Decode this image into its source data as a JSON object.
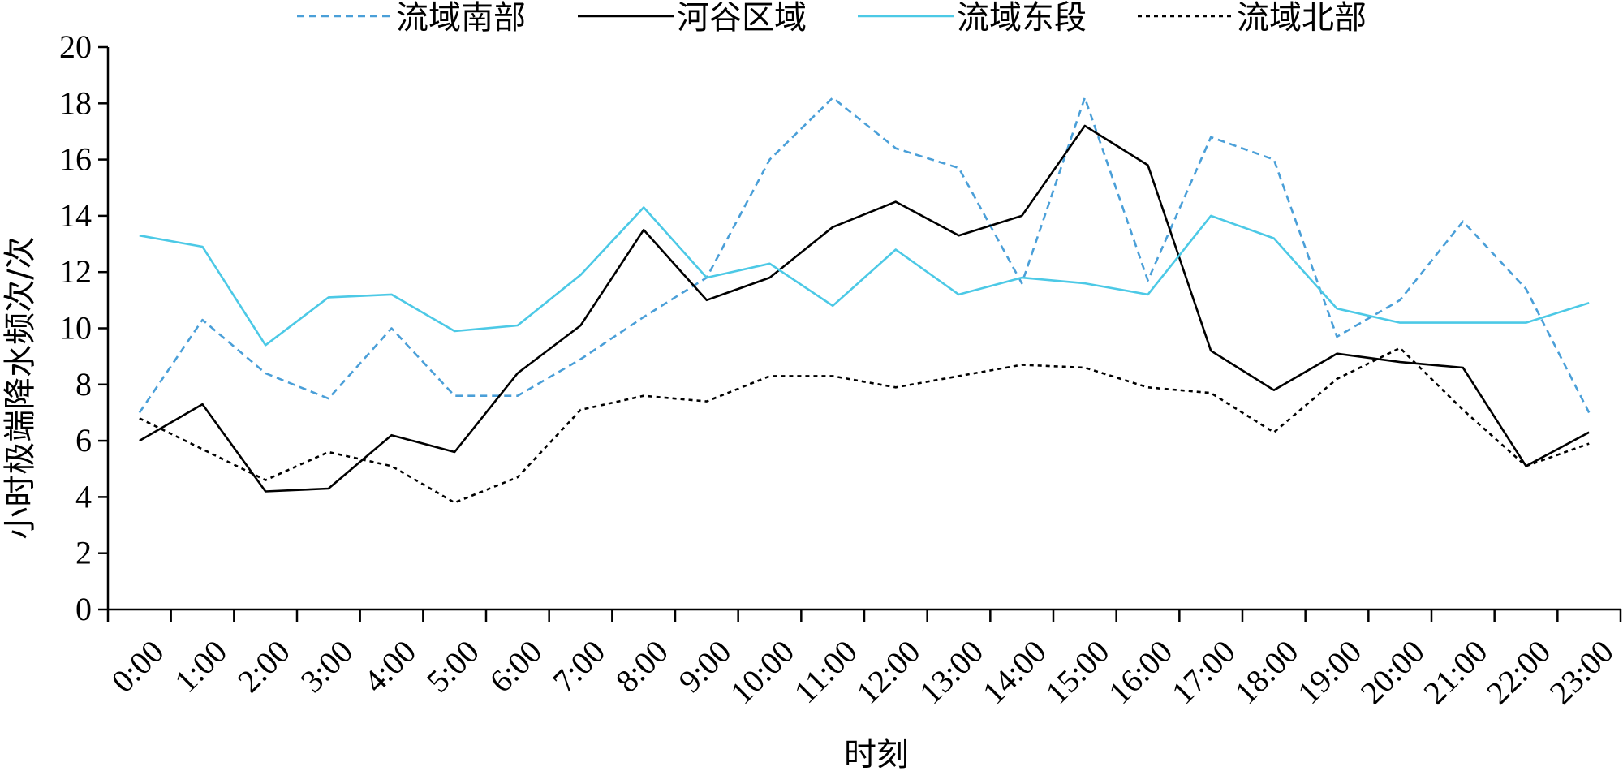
{
  "chart_data": {
    "type": "line",
    "xlabel": "时刻",
    "ylabel": "小时极端降水频次/次",
    "ylim": [
      0,
      20
    ],
    "yticks": [
      0,
      2,
      4,
      6,
      8,
      10,
      12,
      14,
      16,
      18,
      20
    ],
    "categories": [
      "0:00",
      "1:00",
      "2:00",
      "3:00",
      "4:00",
      "5:00",
      "6:00",
      "7:00",
      "8:00",
      "9:00",
      "10:00",
      "11:00",
      "12:00",
      "13:00",
      "14:00",
      "15:00",
      "16:00",
      "17:00",
      "18:00",
      "19:00",
      "20:00",
      "21:00",
      "22:00",
      "23:00"
    ],
    "grid": false,
    "legend_position": "top",
    "series": [
      {
        "name": "流域南部",
        "color": "#4a9fd8",
        "dash": "dashed",
        "values": [
          7.0,
          10.3,
          8.4,
          7.5,
          10.0,
          7.6,
          7.6,
          8.9,
          10.4,
          11.8,
          16.0,
          18.2,
          16.4,
          15.7,
          11.6,
          18.2,
          11.7,
          16.8,
          16.0,
          9.7,
          11.0,
          13.8,
          11.4,
          7.0
        ]
      },
      {
        "name": "河谷区域",
        "color": "#000000",
        "dash": "solid",
        "values": [
          6.0,
          7.3,
          4.2,
          4.3,
          6.2,
          5.6,
          8.4,
          10.1,
          13.5,
          11.0,
          11.8,
          13.6,
          14.5,
          13.3,
          14.0,
          17.2,
          15.8,
          9.2,
          7.8,
          9.1,
          8.8,
          8.6,
          5.1,
          6.3
        ]
      },
      {
        "name": "流域东段",
        "color": "#4cc9e6",
        "dash": "solid",
        "values": [
          13.3,
          12.9,
          9.4,
          11.1,
          11.2,
          9.9,
          10.1,
          11.9,
          14.3,
          11.8,
          12.3,
          10.8,
          12.8,
          11.2,
          11.8,
          11.6,
          11.2,
          14.0,
          13.2,
          10.7,
          10.2,
          10.2,
          10.2,
          10.9
        ]
      },
      {
        "name": "流域北部",
        "color": "#000000",
        "dash": "dotted",
        "values": [
          6.8,
          5.7,
          4.6,
          5.6,
          5.1,
          3.8,
          4.7,
          7.1,
          7.6,
          7.4,
          8.3,
          8.3,
          7.9,
          8.3,
          8.7,
          8.6,
          7.9,
          7.7,
          6.3,
          8.2,
          9.3,
          7.1,
          5.1,
          5.9
        ]
      }
    ]
  }
}
